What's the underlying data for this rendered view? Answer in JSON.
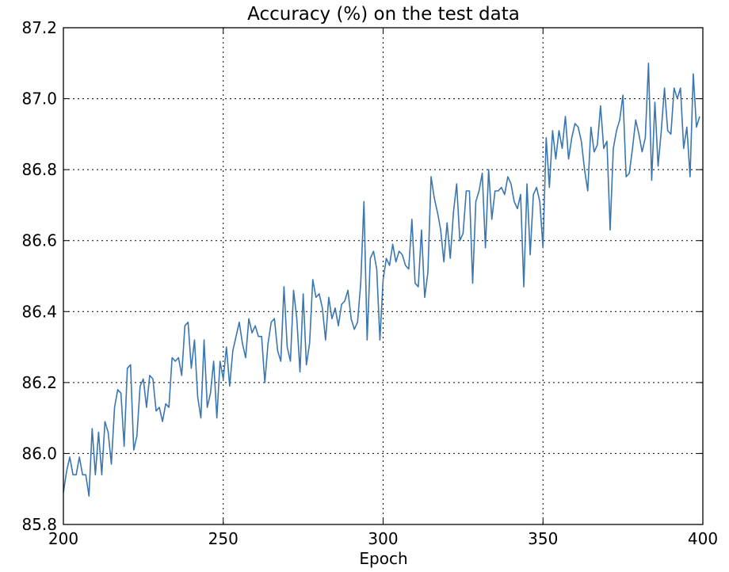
{
  "chart_data": {
    "type": "line",
    "title": "Accuracy (%) on the test data",
    "xlabel": "Epoch",
    "ylabel": "",
    "xlim": [
      200,
      400
    ],
    "ylim": [
      85.8,
      87.2
    ],
    "xticks": [
      200,
      250,
      300,
      350,
      400
    ],
    "xtick_labels": [
      "200",
      "250",
      "300",
      "350",
      "400"
    ],
    "yticks": [
      85.8,
      86.0,
      86.2,
      86.4,
      86.6,
      86.8,
      87.0,
      87.2
    ],
    "ytick_labels": [
      "85.8",
      "86.0",
      "86.2",
      "86.4",
      "86.6",
      "86.8",
      "87.0",
      "87.2"
    ],
    "grid": true,
    "line_color": "#3a76b0",
    "series": [
      {
        "x_start": 200,
        "x_step": 1,
        "values": [
          85.89,
          85.95,
          85.99,
          85.94,
          85.94,
          85.99,
          85.94,
          85.94,
          85.88,
          86.07,
          85.94,
          86.06,
          85.94,
          86.09,
          86.06,
          85.97,
          86.13,
          86.18,
          86.17,
          86.02,
          86.24,
          86.25,
          86.01,
          86.05,
          86.19,
          86.21,
          86.13,
          86.22,
          86.21,
          86.12,
          86.13,
          86.09,
          86.14,
          86.13,
          86.27,
          86.26,
          86.27,
          86.22,
          86.36,
          86.37,
          86.24,
          86.32,
          86.16,
          86.1,
          86.32,
          86.13,
          86.17,
          86.26,
          86.1,
          86.26,
          86.21,
          86.3,
          86.19,
          86.29,
          86.33,
          86.37,
          86.31,
          86.27,
          86.38,
          86.34,
          86.36,
          86.33,
          86.33,
          86.2,
          86.31,
          86.37,
          86.38,
          86.29,
          86.26,
          86.47,
          86.3,
          86.26,
          86.46,
          86.38,
          86.23,
          86.45,
          86.25,
          86.31,
          86.49,
          86.44,
          86.45,
          86.41,
          86.32,
          86.44,
          86.38,
          86.41,
          86.36,
          86.42,
          86.43,
          86.46,
          86.38,
          86.35,
          86.37,
          86.48,
          86.71,
          86.32,
          86.55,
          86.57,
          86.52,
          86.32,
          86.49,
          86.55,
          86.53,
          86.59,
          86.54,
          86.57,
          86.56,
          86.53,
          86.52,
          86.66,
          86.48,
          86.47,
          86.63,
          86.44,
          86.51,
          86.78,
          86.72,
          86.68,
          86.63,
          86.54,
          86.65,
          86.55,
          86.68,
          86.76,
          86.6,
          86.62,
          86.74,
          86.74,
          86.48,
          86.71,
          86.74,
          86.79,
          86.58,
          86.8,
          86.66,
          86.74,
          86.74,
          86.75,
          86.73,
          86.78,
          86.76,
          86.71,
          86.69,
          86.73,
          86.47,
          86.76,
          86.56,
          86.73,
          86.75,
          86.71,
          86.58,
          86.89,
          86.75,
          86.91,
          86.83,
          86.91,
          86.86,
          86.95,
          86.83,
          86.89,
          86.93,
          86.92,
          86.88,
          86.8,
          86.74,
          86.92,
          86.85,
          86.87,
          86.98,
          86.86,
          86.88,
          86.63,
          86.86,
          86.91,
          86.94,
          87.01,
          86.78,
          86.79,
          86.86,
          86.94,
          86.9,
          86.85,
          86.89,
          87.1,
          86.77,
          86.99,
          86.81,
          86.91,
          87.03,
          86.91,
          86.9,
          87.03,
          87.0,
          87.03,
          86.86,
          86.92,
          86.78,
          87.07,
          86.92,
          86.95
        ]
      }
    ]
  }
}
